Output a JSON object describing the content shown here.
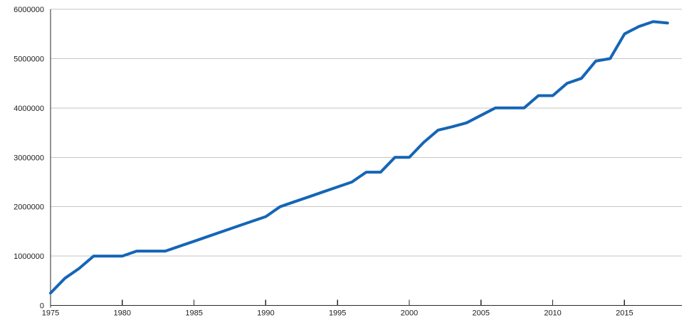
{
  "chart_data": {
    "type": "line",
    "title": "",
    "xlabel": "",
    "ylabel": "",
    "legend": "none",
    "grid": "horizontal",
    "x": [
      1975,
      1976,
      1977,
      1978,
      1979,
      1980,
      1981,
      1982,
      1983,
      1984,
      1985,
      1986,
      1987,
      1988,
      1989,
      1990,
      1991,
      1992,
      1993,
      1994,
      1995,
      1996,
      1997,
      1998,
      1999,
      2000,
      2001,
      2002,
      2003,
      2004,
      2005,
      2006,
      2007,
      2008,
      2009,
      2010,
      2011,
      2012,
      2013,
      2014,
      2015,
      2016,
      2017,
      2018
    ],
    "values": [
      250000,
      550000,
      750000,
      1000000,
      1000000,
      1000000,
      1100000,
      1100000,
      1100000,
      1200000,
      1300000,
      1400000,
      1500000,
      1600000,
      1700000,
      1800000,
      2000000,
      2100000,
      2200000,
      2300000,
      2400000,
      2500000,
      2700000,
      2700000,
      3000000,
      3000000,
      3300000,
      3550000,
      3620000,
      3700000,
      3850000,
      4000000,
      4000000,
      4000000,
      4250000,
      4250000,
      4500000,
      4600000,
      4950000,
      5000000,
      5500000,
      5650000,
      5750000,
      5720000
    ],
    "xlim": [
      1975,
      2019
    ],
    "ylim": [
      0,
      6000000
    ],
    "x_ticks": [
      1975,
      1980,
      1985,
      1990,
      1995,
      2000,
      2005,
      2010,
      2015
    ],
    "x_tick_labels": [
      "1975",
      "1980",
      "1985",
      "1990",
      "1995",
      "2000",
      "2005",
      "2010",
      "2015"
    ],
    "y_ticks": [
      0,
      1000000,
      2000000,
      3000000,
      4000000,
      5000000,
      6000000
    ],
    "y_tick_labels": [
      "0",
      "1000000",
      "2000000",
      "3000000",
      "4000000",
      "5000000",
      "6000000"
    ],
    "line_color": "#1565b6",
    "grid_color": "#c6c6c6",
    "axis_color": "#2a2a2a",
    "background": "#ffffff"
  }
}
